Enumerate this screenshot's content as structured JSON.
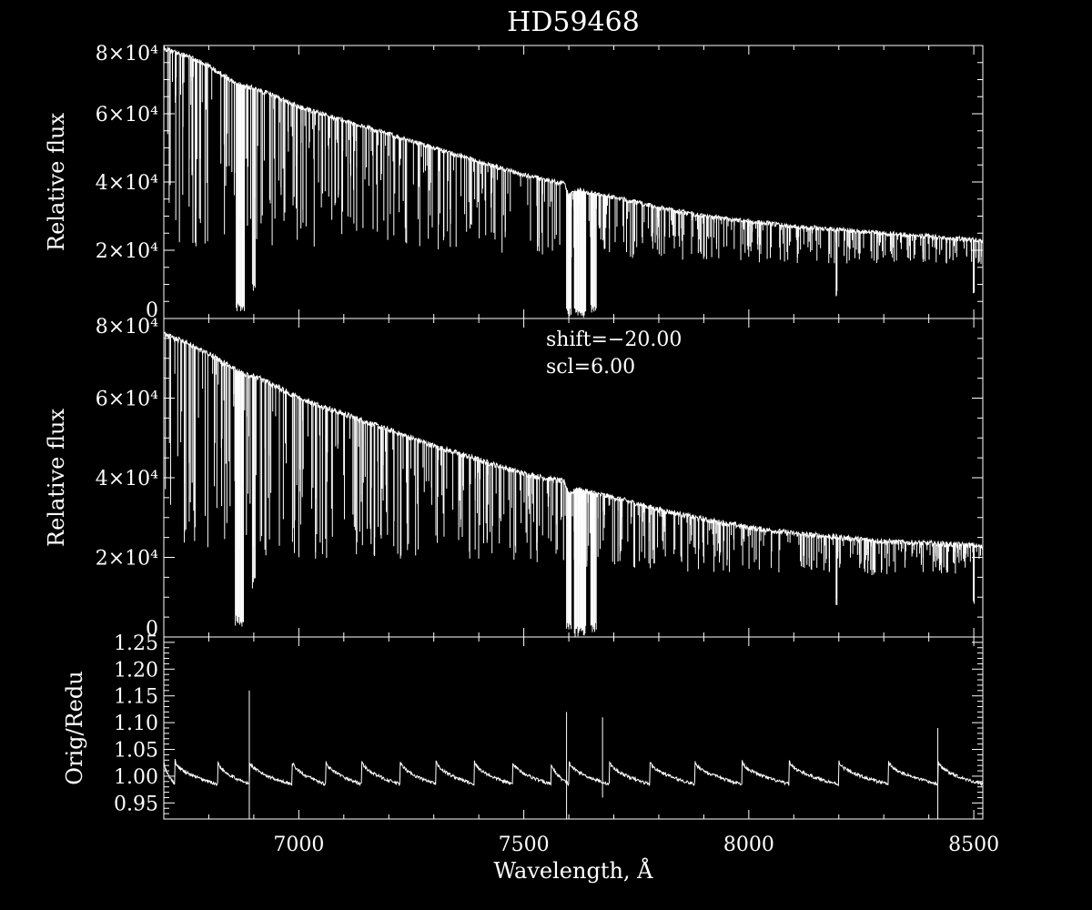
{
  "colors": {
    "background": "#000000",
    "foreground": "#ffffff"
  },
  "chart_data": [
    {
      "type": "line",
      "panel": "top",
      "title": "HD59468",
      "xlabel": "",
      "ylabel": "Relative flux",
      "xlim": [
        6700,
        8520
      ],
      "ylim": [
        0,
        80000
      ],
      "yticks": [
        {
          "value": 0,
          "label": "0"
        },
        {
          "value": 20000,
          "label": "2×10⁴"
        },
        {
          "value": 40000,
          "label": "4×10⁴"
        },
        {
          "value": 60000,
          "label": "6×10⁴"
        },
        {
          "value": 80000,
          "label": "8×10⁴"
        }
      ],
      "series": [
        {
          "x": [
            6700,
            6750,
            6800,
            6860,
            6880,
            6900,
            6950,
            7000,
            7100,
            7200,
            7300,
            7400,
            7500,
            7590,
            7600,
            7620,
            7700,
            7800,
            7900,
            8000,
            8100,
            8200,
            8300,
            8400,
            8500,
            8520
          ],
          "y": [
            79000,
            77000,
            74000,
            69000,
            68000,
            67500,
            65000,
            62000,
            58000,
            54000,
            50000,
            46000,
            42000,
            39500,
            36000,
            37500,
            35500,
            32500,
            30000,
            28500,
            27000,
            26000,
            25000,
            24000,
            23000,
            22500
          ]
        }
      ],
      "absorption_features": [
        {
          "x": 6870,
          "depth_to": 1500,
          "width": 18
        },
        {
          "x": 6900,
          "depth_to": 7000,
          "width": 6
        },
        {
          "x": 7600,
          "depth_to": 500,
          "width": 10
        },
        {
          "x": 7625,
          "depth_to": 0,
          "width": 25
        },
        {
          "x": 7655,
          "depth_to": 1000,
          "width": 12
        },
        {
          "x": 8195,
          "depth_to": 6500,
          "width": 2
        },
        {
          "x": 8500,
          "depth_to": 7000,
          "width": 2
        }
      ]
    },
    {
      "type": "line",
      "panel": "middle",
      "title": "",
      "xlabel": "",
      "ylabel": "Relative flux",
      "xlim": [
        6700,
        8520
      ],
      "ylim": [
        0,
        80000
      ],
      "yticks": [
        {
          "value": 0,
          "label": "0"
        },
        {
          "value": 20000,
          "label": "2×10⁴"
        },
        {
          "value": 40000,
          "label": "4×10⁴"
        },
        {
          "value": 60000,
          "label": "6×10⁴"
        },
        {
          "value": 80000,
          "label": "8×10⁴"
        }
      ],
      "annotations": [
        "shift=−20.00",
        "scl=6.00"
      ],
      "series": [
        {
          "x": [
            6700,
            6750,
            6800,
            6860,
            6880,
            6900,
            6950,
            7000,
            7100,
            7200,
            7300,
            7400,
            7500,
            7590,
            7600,
            7620,
            7700,
            7800,
            7900,
            8000,
            8100,
            8200,
            8300,
            8400,
            8500,
            8520
          ],
          "y": [
            76000,
            74000,
            71000,
            67000,
            66000,
            65500,
            63000,
            60000,
            56000,
            52000,
            48000,
            44500,
            41000,
            39000,
            36000,
            37000,
            35000,
            32000,
            29500,
            27500,
            26000,
            25000,
            24000,
            23500,
            23000,
            22500
          ]
        }
      ],
      "absorption_features": [
        {
          "x": 6868,
          "depth_to": 2500,
          "width": 18
        },
        {
          "x": 6900,
          "depth_to": 12000,
          "width": 6
        },
        {
          "x": 7600,
          "depth_to": 500,
          "width": 10
        },
        {
          "x": 7625,
          "depth_to": 0,
          "width": 25
        },
        {
          "x": 7655,
          "depth_to": 1000,
          "width": 12
        },
        {
          "x": 8195,
          "depth_to": 7000,
          "width": 2
        },
        {
          "x": 8500,
          "depth_to": 6500,
          "width": 2
        }
      ]
    },
    {
      "type": "line",
      "panel": "bottom",
      "title": "",
      "xlabel": "Wavelength, Å",
      "ylabel": "Orig/Redu",
      "xlim": [
        6700,
        8520
      ],
      "ylim": [
        0.92,
        1.26
      ],
      "xticks": [
        {
          "value": 7000,
          "label": "7000"
        },
        {
          "value": 7500,
          "label": "7500"
        },
        {
          "value": 8000,
          "label": "8000"
        },
        {
          "value": 8500,
          "label": "8500"
        }
      ],
      "yticks": [
        {
          "value": 0.95,
          "label": "0.95"
        },
        {
          "value": 1.0,
          "label": "1.00"
        },
        {
          "value": 1.05,
          "label": "1.05"
        },
        {
          "value": 1.1,
          "label": "1.10"
        },
        {
          "value": 1.15,
          "label": "1.15"
        },
        {
          "value": 1.2,
          "label": "1.20"
        },
        {
          "value": 1.25,
          "label": "1.25"
        }
      ],
      "baseline": 1.0,
      "sawtooth_jumps": [
        6725,
        6820,
        6890,
        6985,
        7060,
        7140,
        7225,
        7305,
        7390,
        7475,
        7560,
        7600,
        7690,
        7780,
        7880,
        7985,
        8090,
        8200,
        8310,
        8420,
        8520
      ],
      "spikes": [
        {
          "x": 6890,
          "high": 1.16,
          "low": 0.92
        },
        {
          "x": 7595,
          "high": 1.12,
          "low": 0.92
        },
        {
          "x": 7675,
          "high": 1.11,
          "low": 0.96
        },
        {
          "x": 8420,
          "high": 1.09,
          "low": 0.92
        }
      ]
    }
  ]
}
